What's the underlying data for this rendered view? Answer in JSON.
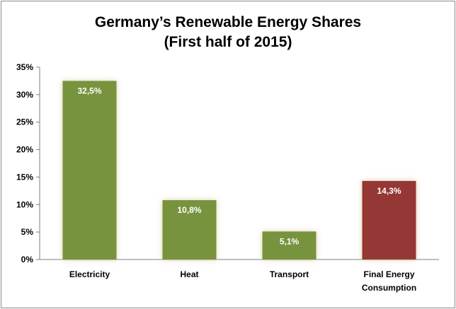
{
  "chart_data": {
    "type": "bar",
    "title": "Germany’s Renewable Energy Shares",
    "subtitle": "(First half of 2015)",
    "categories": [
      "Electricity",
      "Heat",
      "Transport",
      "Final Energy Consumption"
    ],
    "category_lines": [
      [
        "Electricity"
      ],
      [
        "Heat"
      ],
      [
        "Transport"
      ],
      [
        "Final Energy",
        "Consumption"
      ]
    ],
    "values": [
      32.5,
      10.8,
      5.1,
      14.3
    ],
    "value_labels": [
      "32,5%",
      "10,8%",
      "5,1%",
      "14,3%"
    ],
    "bar_colors": [
      "#77933c",
      "#77933c",
      "#77933c",
      "#953735"
    ],
    "ylim": [
      0,
      35
    ],
    "yticks": [
      0,
      5,
      10,
      15,
      20,
      25,
      30,
      35
    ],
    "ytick_labels": [
      "0%",
      "5%",
      "10%",
      "15%",
      "20%",
      "25%",
      "30%",
      "35%"
    ],
    "grid": false,
    "legend": "none"
  }
}
